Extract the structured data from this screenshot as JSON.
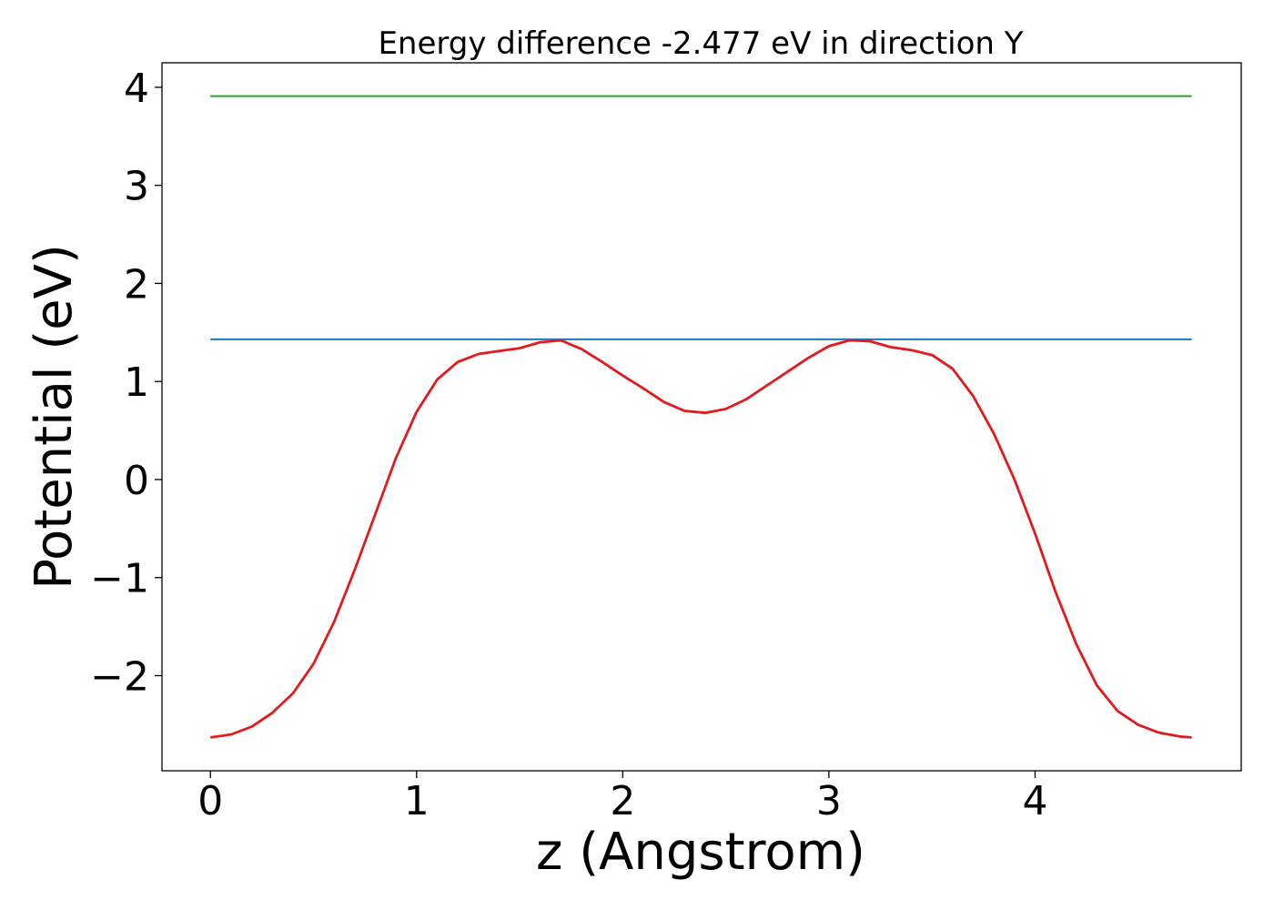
{
  "chart_data": {
    "type": "line",
    "title": "Energy difference -2.477 eV in direction Y",
    "xlabel": "z (Angstrom)",
    "ylabel": "Potential (eV)",
    "xlim": [
      -0.235,
      5.0
    ],
    "ylim": [
      -2.97,
      4.25
    ],
    "xticks": [
      0,
      1,
      2,
      3,
      4
    ],
    "xtick_labels": [
      "0",
      "1",
      "2",
      "3",
      "4"
    ],
    "yticks": [
      -2,
      -1,
      0,
      1,
      2,
      3,
      4
    ],
    "ytick_labels": [
      "−2",
      "−1",
      "0",
      "1",
      "2",
      "3",
      "4"
    ],
    "grid": false,
    "series": [
      {
        "color": "#2ca02c",
        "x": [
          0,
          4.76
        ],
        "y": [
          3.91,
          3.91
        ]
      },
      {
        "color": "#1f77b4",
        "x": [
          0,
          4.76
        ],
        "y": [
          1.43,
          1.43
        ]
      },
      {
        "color": "#e31a1c",
        "x": [
          0,
          0.1,
          0.2,
          0.3,
          0.4,
          0.5,
          0.6,
          0.7,
          0.8,
          0.9,
          1.0,
          1.1,
          1.2,
          1.3,
          1.4,
          1.5,
          1.6,
          1.7,
          1.8,
          1.9,
          2.0,
          2.1,
          2.2,
          2.3,
          2.4,
          2.5,
          2.6,
          2.7,
          2.8,
          2.9,
          3.0,
          3.1,
          3.2,
          3.3,
          3.4,
          3.5,
          3.6,
          3.7,
          3.8,
          3.9,
          4.0,
          4.1,
          4.2,
          4.3,
          4.4,
          4.5,
          4.6,
          4.7,
          4.76
        ],
        "y": [
          -2.63,
          -2.6,
          -2.52,
          -2.38,
          -2.18,
          -1.88,
          -1.45,
          -0.92,
          -0.35,
          0.22,
          0.69,
          1.02,
          1.2,
          1.28,
          1.31,
          1.34,
          1.4,
          1.42,
          1.33,
          1.2,
          1.06,
          0.93,
          0.79,
          0.7,
          0.68,
          0.72,
          0.82,
          0.96,
          1.1,
          1.24,
          1.36,
          1.42,
          1.41,
          1.35,
          1.32,
          1.27,
          1.13,
          0.85,
          0.47,
          0.0,
          -0.55,
          -1.15,
          -1.68,
          -2.1,
          -2.36,
          -2.5,
          -2.58,
          -2.62,
          -2.63
        ]
      }
    ]
  }
}
